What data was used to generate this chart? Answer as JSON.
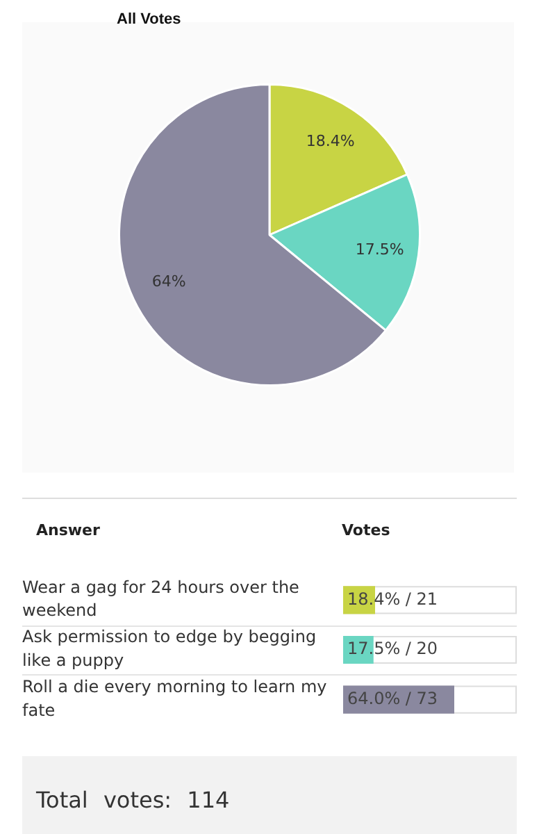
{
  "chart_data": [
    {
      "type": "pie",
      "title": "All Votes",
      "categories": [
        null,
        null,
        null
      ],
      "values": [
        18.4,
        17.5,
        64
      ],
      "colors": [
        "#c8d444",
        "#6ad6c2",
        "#8a889f"
      ],
      "value_labels": [
        "18.4%",
        "17.5%",
        "64%"
      ],
      "legend": false
    },
    {
      "type": "bar",
      "orientation": "horizontal",
      "categories": [
        "Wear a gag for 24 hours over the weekend",
        "Ask permission to edge by begging like a puppy",
        "Roll a die every morning to learn my fate"
      ],
      "values": [
        18.4,
        17.5,
        64.0
      ],
      "colors": [
        "#c8d444",
        "#6ad6c2",
        "#8a889f"
      ],
      "value_labels": [
        "18.4% / 21",
        "17.5% / 20",
        "64.0% / 73"
      ],
      "xlim": [
        0,
        100
      ],
      "tick_labels": "y",
      "annotations": [
        "Answer",
        "Votes",
        "Total votes: 114"
      ]
    }
  ]
}
